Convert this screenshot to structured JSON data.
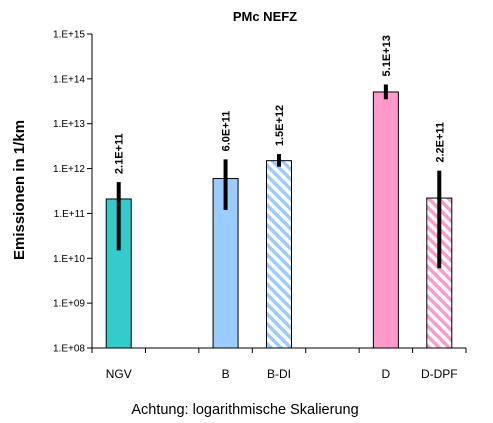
{
  "chart_data": {
    "type": "bar",
    "title": "PMc NEFZ",
    "ylabel": "Emissionen in 1/km",
    "xlabel": "",
    "yscale": "log",
    "ylim": [
      100000000.0,
      1000000000000000.0
    ],
    "ytick_values": [
      100000000.0,
      1000000000.0,
      10000000000.0,
      100000000000.0,
      1000000000000.0,
      10000000000000.0,
      100000000000000.0,
      1000000000000000.0
    ],
    "ytick_labels": [
      "1.E+08",
      "1.E+09",
      "1.E+10",
      "1.E+11",
      "1.E+12",
      "1.E+13",
      "1.E+14",
      "1.E+15"
    ],
    "categories": [
      "NGV",
      "",
      "B",
      "B-DI",
      "",
      "D",
      "D-DPF"
    ],
    "values": [
      210000000000.0,
      null,
      600000000000.0,
      1500000000000.0,
      null,
      51000000000000.0,
      220000000000.0
    ],
    "data_labels": [
      "2.1E+11",
      "",
      "6.0E+11",
      "1.5E+12",
      "",
      "5.1E+13",
      "2.2E+11"
    ],
    "error_low": [
      15000000000.0,
      null,
      120000000000.0,
      1100000000000.0,
      null,
      35000000000000.0,
      6000000000.0
    ],
    "error_high": [
      500000000000.0,
      null,
      1600000000000.0,
      2100000000000.0,
      null,
      75000000000000.0,
      900000000000.0
    ],
    "bar_fill": [
      "solid",
      null,
      "solid",
      "hatched",
      null,
      "solid",
      "hatched"
    ],
    "colors": [
      "#33CCCC",
      null,
      "#99CCFF",
      "#99CCFF",
      null,
      "#FF99CC",
      "#FF99CC"
    ],
    "grid": false,
    "legend": "none"
  },
  "note": "Achtung: logarithmische Skalierung"
}
